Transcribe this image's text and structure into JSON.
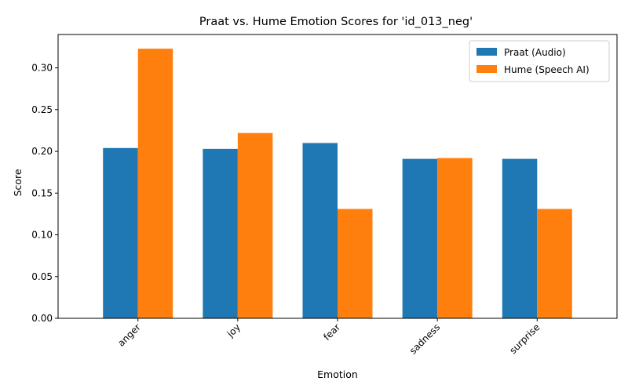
{
  "chart_data": {
    "type": "bar",
    "title": "Praat vs. Hume Emotion Scores for 'id_013_neg'",
    "xlabel": "Emotion",
    "ylabel": "Score",
    "categories": [
      "anger",
      "joy",
      "fear",
      "sadness",
      "surprise"
    ],
    "series": [
      {
        "name": "Praat (Audio)",
        "color": "#1f77b4",
        "values": [
          0.204,
          0.203,
          0.21,
          0.191,
          0.191
        ]
      },
      {
        "name": "Hume (Speech AI)",
        "color": "#ff7f0e",
        "values": [
          0.323,
          0.222,
          0.131,
          0.192,
          0.131
        ]
      }
    ],
    "ylim": [
      0,
      0.34
    ],
    "yticks": [
      0.0,
      0.05,
      0.1,
      0.15,
      0.2,
      0.25,
      0.3
    ],
    "ytick_labels": [
      "0.00",
      "0.05",
      "0.10",
      "0.15",
      "0.20",
      "0.25",
      "0.30"
    ],
    "xtick_rotation": 45,
    "grid": false,
    "legend_position": "top-right"
  }
}
